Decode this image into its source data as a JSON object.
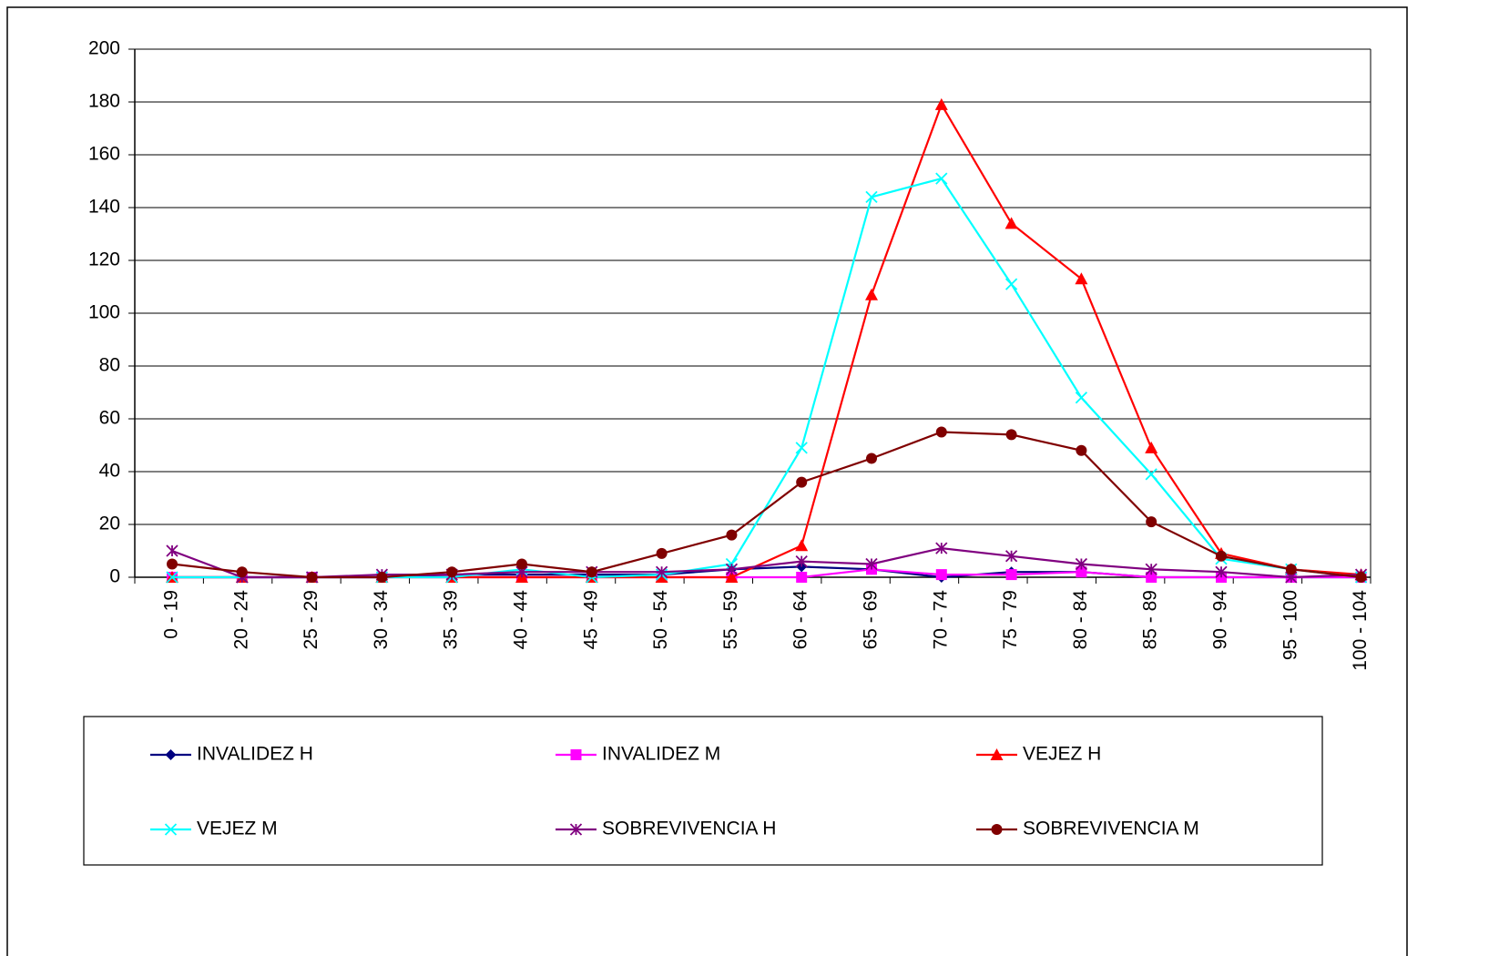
{
  "chart_data": {
    "type": "line",
    "categories": [
      "0 - 19",
      "20 - 24",
      "25 - 29",
      "30 - 34",
      "35 - 39",
      "40 - 44",
      "45 - 49",
      "50 - 54",
      "55 - 59",
      "60 - 64",
      "65 - 69",
      "70 - 74",
      "75 - 79",
      "80 - 84",
      "85 - 89",
      "90 - 94",
      "95 - 100",
      "100 - 104"
    ],
    "series": [
      {
        "name": "INVALIDEZ H",
        "color": "#000080",
        "marker": "diamond",
        "values": [
          0,
          0,
          0,
          0,
          1,
          1,
          1,
          1,
          3,
          4,
          3,
          0,
          2,
          2,
          0,
          0,
          0,
          0
        ]
      },
      {
        "name": "INVALIDEZ M",
        "color": "#ff00ff",
        "marker": "square",
        "values": [
          0,
          0,
          0,
          0,
          0,
          0,
          0,
          0,
          0,
          0,
          3,
          1,
          1,
          2,
          0,
          0,
          0,
          0
        ]
      },
      {
        "name": "VEJEZ H",
        "color": "#ff0000",
        "marker": "triangle",
        "values": [
          0,
          0,
          0,
          0,
          0,
          0,
          0,
          0,
          0,
          12,
          107,
          179,
          134,
          113,
          49,
          9,
          3,
          1
        ]
      },
      {
        "name": "VEJEZ M",
        "color": "#00ffff",
        "marker": "x",
        "values": [
          0,
          0,
          0,
          0,
          0,
          3,
          0,
          1,
          5,
          49,
          144,
          151,
          111,
          68,
          39,
          7,
          3,
          0
        ]
      },
      {
        "name": "SOBREVIVENCIA H",
        "color": "#800080",
        "marker": "star",
        "values": [
          10,
          0,
          0,
          1,
          1,
          2,
          2,
          2,
          3,
          6,
          5,
          11,
          8,
          5,
          3,
          2,
          0,
          1
        ]
      },
      {
        "name": "SOBREVIVENCIA M",
        "color": "#800000",
        "marker": "circle",
        "values": [
          5,
          2,
          0,
          0,
          2,
          5,
          2,
          9,
          16,
          36,
          45,
          55,
          54,
          48,
          21,
          8,
          3,
          0
        ]
      }
    ],
    "ylim": [
      0,
      200
    ],
    "yticks": [
      0,
      20,
      40,
      60,
      80,
      100,
      120,
      140,
      160,
      180,
      200
    ],
    "grid": true,
    "legend": "bottom"
  }
}
